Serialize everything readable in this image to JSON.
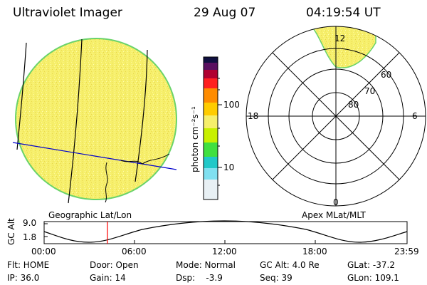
{
  "header": {
    "instrument": "Ultraviolet Imager",
    "date": "29 Aug 07",
    "time": "04:19:54 UT"
  },
  "colorbar": {
    "label": "photon cm⁻²s⁻¹",
    "ticks": [
      "100",
      "10"
    ]
  },
  "polar_plot": {
    "mlt_labels": [
      "12",
      "18",
      "6",
      "0"
    ],
    "lat_labels": [
      "60",
      "70",
      "80"
    ]
  },
  "panel_labels": {
    "left": "Geographic Lat/Lon",
    "right": "Apex MLat/MLT"
  },
  "altitude_plot": {
    "ylabel": "GC Alt",
    "yticks": [
      "9.0",
      "1.8"
    ],
    "xticks": [
      "00:00",
      "06:00",
      "12:00",
      "18:00",
      "23:59"
    ],
    "current_time_hours": 4.33
  },
  "footer": {
    "row1": [
      "Flt: HOME",
      "Door: Open",
      "Mode: Normal",
      "GC Alt: 4.0 Re",
      "GLat: -37.2"
    ],
    "row2": [
      "IP: 36.0",
      "Gain: 14",
      "Dsp:    -3.9",
      "Seq: 39",
      "GLon: 109.1"
    ]
  },
  "colors": {
    "auroral_fill": "#f5f06a",
    "disk_edge": "#6ad36a",
    "marker": "#ff0000",
    "grid": "#000000",
    "overlay_line": "#0000cc"
  }
}
